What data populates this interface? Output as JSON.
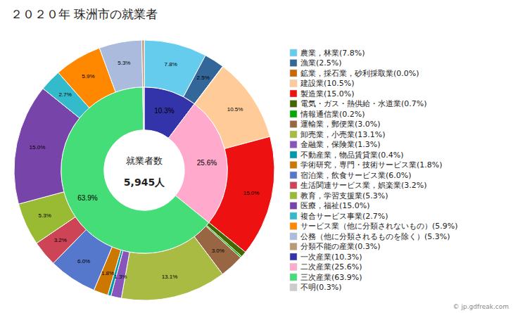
{
  "chart_data": {
    "type": "donut",
    "title": "２０２０年 珠洲市の就業者",
    "annotations": [
      "就業者数",
      "5,945人",
      "© jp.gdfreak.com"
    ],
    "legend": "right",
    "data_labels": true,
    "series": [
      {
        "categories": [
          "一次産業(10.3%)",
          "二次産業(25.6%)",
          "三次産業(63.9%)",
          "不明(0.3%)"
        ],
        "values": [
          10.3,
          25.6,
          63.9,
          0.3
        ],
        "value_labels": [
          "10.3%",
          "25.6%",
          "63.9%",
          null
        ],
        "colors": [
          "#3333aa",
          "#ffaacc",
          "#44dd77",
          "#cccccc"
        ]
      },
      {
        "categories": [
          "農業，林業(7.8%)",
          "漁業(2.5%)",
          "鉱業，採石業，砂利採取業(0.0%)",
          "建設業(10.5%)",
          "製造業(15.0%)",
          "電気・ガス・熱供給・水道業(0.7%)",
          "情報通信業(0.2%)",
          "運輸業，郵便業(3.0%)",
          "卸売業，小売業(13.1%)",
          "金融業，保険業(1.3%)",
          "不動産業，物品賃貸業(0.4%)",
          "学術研究，専門・技術サービス業(1.8%)",
          "宿泊業，飲食サービス業(6.0%)",
          "生活関連サービス業，娯楽業(3.2%)",
          "教育，学習支援業(5.3%)",
          "医療，福祉(15.0%)",
          "複合サービス事業(2.7%)",
          "サービス業（他に分類されないもの）(5.9%)",
          "公務（他に分類されるものを除く）(5.3%)",
          "分類不能の産業(0.3%)"
        ],
        "values": [
          7.8,
          2.5,
          0.05,
          10.5,
          15.0,
          0.7,
          0.2,
          3.0,
          13.1,
          1.3,
          0.4,
          1.8,
          6.0,
          3.2,
          5.3,
          15.0,
          2.7,
          5.9,
          5.3,
          0.3
        ],
        "value_labels": [
          "7.8%",
          "2.5%",
          null,
          "10.5%",
          "15.0%",
          null,
          null,
          "3.0%",
          "13.1%",
          "1.3%",
          null,
          "1.8%",
          "6.0%",
          "3.2%",
          "5.3%",
          "15.0%",
          "2.7%",
          "5.9%",
          "5.3%",
          null
        ],
        "colors": [
          "#66ccee",
          "#336699",
          "#cc6600",
          "#ffcc99",
          "#ee1111",
          "#446600",
          "#00aa00",
          "#996644",
          "#aabb44",
          "#8855bb",
          "#0099aa",
          "#cc7700",
          "#5577cc",
          "#cc4455",
          "#99bb33",
          "#7744aa",
          "#33bbcc",
          "#ff8800",
          "#aabbdd",
          "#bb9977"
        ]
      }
    ]
  }
}
